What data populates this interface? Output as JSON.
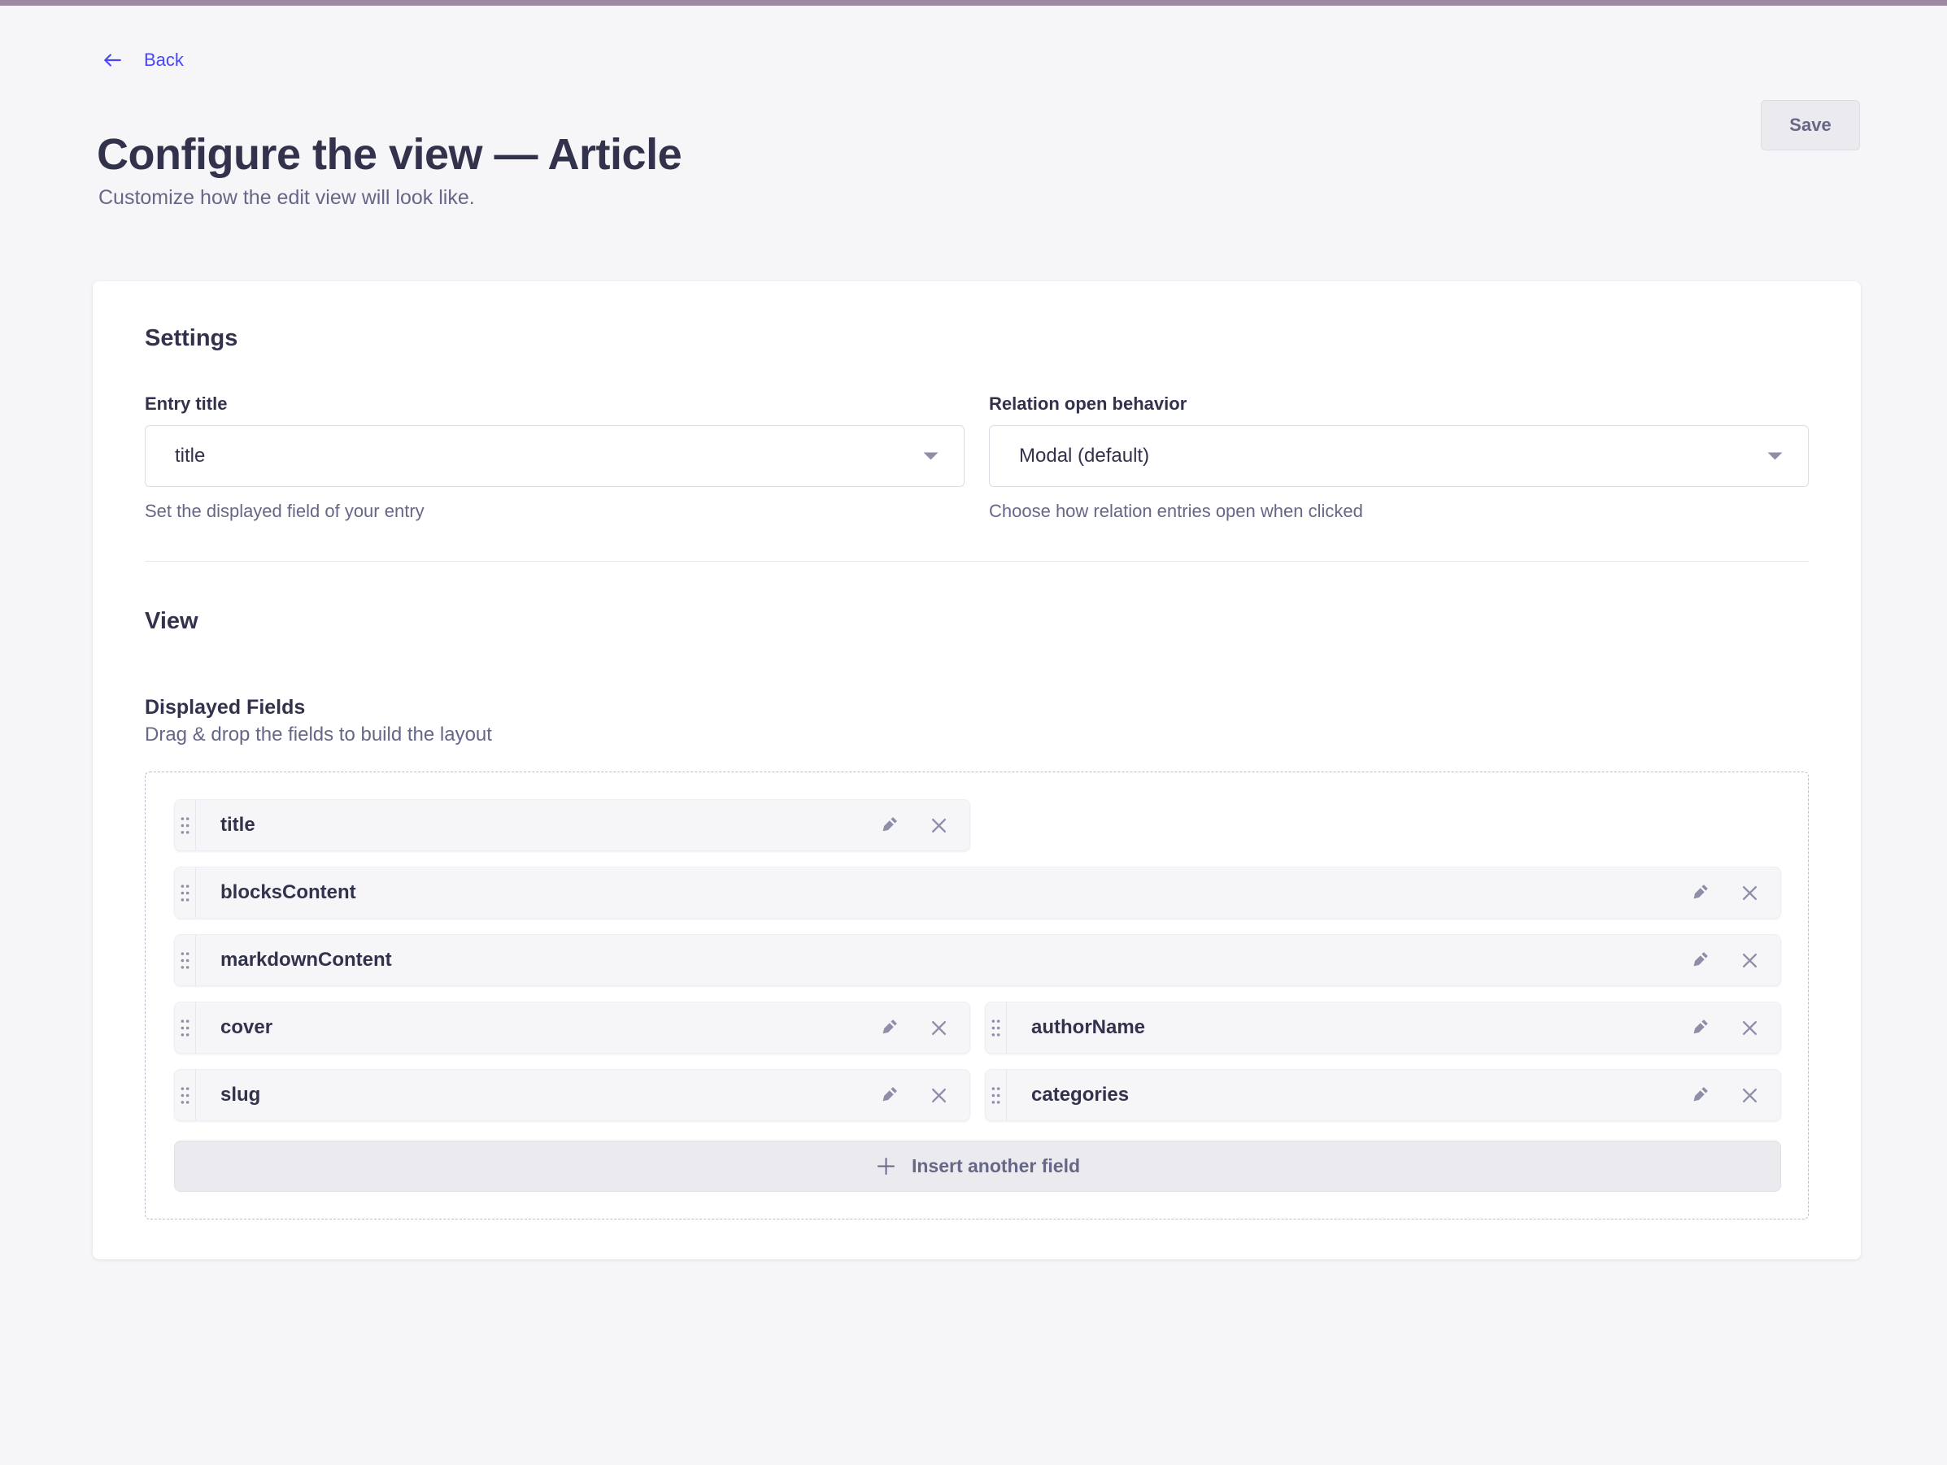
{
  "header": {
    "back_label": "Back",
    "title": "Configure the view — Article",
    "subtitle": "Customize how the edit view will look like.",
    "save_label": "Save"
  },
  "settings": {
    "heading": "Settings",
    "entry_title": {
      "label": "Entry title",
      "value": "title",
      "hint": "Set the displayed field of your entry"
    },
    "relation_open_behavior": {
      "label": "Relation open behavior",
      "value": "Modal (default)",
      "hint": "Choose how relation entries open when clicked"
    }
  },
  "view": {
    "heading": "View",
    "displayed_fields_title": "Displayed Fields",
    "displayed_fields_hint": "Drag & drop the fields to build the layout",
    "rows": [
      {
        "cells": [
          {
            "label": "title",
            "size": "half"
          }
        ]
      },
      {
        "cells": [
          {
            "label": "blocksContent",
            "size": "full"
          }
        ]
      },
      {
        "cells": [
          {
            "label": "markdownContent",
            "size": "full"
          }
        ]
      },
      {
        "cells": [
          {
            "label": "cover",
            "size": "half"
          },
          {
            "label": "authorName",
            "size": "half"
          }
        ]
      },
      {
        "cells": [
          {
            "label": "slug",
            "size": "half"
          },
          {
            "label": "categories",
            "size": "half"
          }
        ]
      }
    ],
    "insert_button_label": "Insert another field"
  },
  "icons": {
    "back": "arrow-left",
    "dropdown": "caret-down",
    "drag": "six-dot-handle",
    "edit": "pencil",
    "remove": "cross",
    "insert": "plus"
  },
  "colors": {
    "accent": "#4945ff",
    "text_dark": "#32324d",
    "text_muted": "#666687",
    "icon_muted": "#8e8ea9",
    "border": "#dcdce4",
    "page_bg": "#f6f6f9",
    "card_bg": "#ffffff",
    "row_bg": "#f6f6f9",
    "topbar": "#9b8aa0"
  }
}
